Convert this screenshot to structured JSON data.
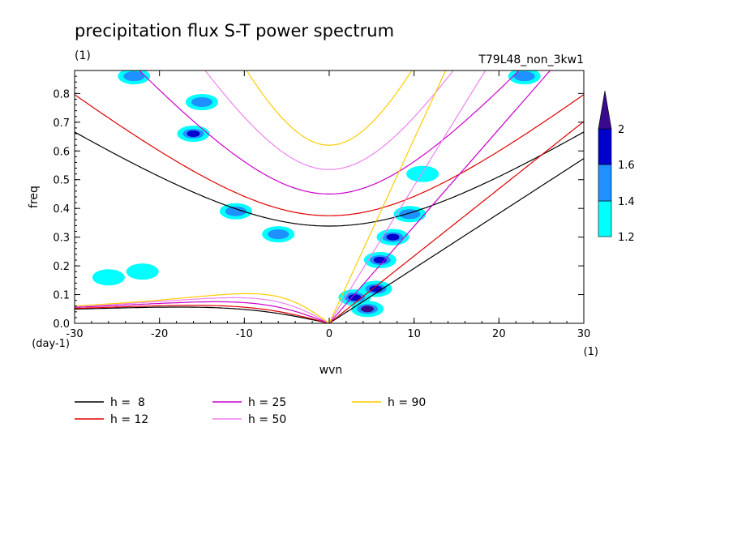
{
  "chart_data": {
    "type": "contour",
    "title": "precipitation flux S-T power spectrum",
    "title_units": "(1)",
    "run_label": "T79L48_non_3kw1",
    "xlabel": "wvn",
    "xlabel_units": "(1)",
    "ylabel": "freq",
    "ylabel_units": "(day-1)",
    "xlim": [
      -30,
      30
    ],
    "ylim": [
      0,
      0.88
    ],
    "xticks": [
      -30,
      -20,
      -10,
      0,
      10,
      20,
      30
    ],
    "xtick_labels": [
      "-30",
      "-20",
      "-10",
      "0",
      "10",
      "20",
      "30"
    ],
    "yticks": [
      0,
      0.1,
      0.2,
      0.3,
      0.4,
      0.5,
      0.6,
      0.7,
      0.8
    ],
    "ytick_labels": [
      "0.0",
      "0.1",
      "0.2",
      "0.3",
      "0.4",
      "0.5",
      "0.6",
      "0.7",
      "0.8"
    ],
    "colorbar": {
      "levels": [
        1.2,
        1.4,
        1.6,
        2
      ],
      "labels": [
        "1.2",
        "1.4",
        "1.6",
        "2"
      ],
      "colors": [
        "#00ffff",
        "#1e90ff",
        "#0000cd",
        "#3a0a8c"
      ]
    },
    "series": [
      {
        "name": "h = 8",
        "color": "#000000",
        "equivalent_depth": 8
      },
      {
        "name": "h = 12",
        "color": "#e00000",
        "equivalent_depth": 12
      },
      {
        "name": "h = 25",
        "color": "#cc00cc",
        "equivalent_depth": 25
      },
      {
        "name": "h = 50",
        "color": "#ee82ee",
        "equivalent_depth": 50
      },
      {
        "name": "h = 90",
        "color": "#ffcc00",
        "equivalent_depth": 90
      }
    ],
    "power_blobs": [
      {
        "x": 4.5,
        "y": 0.05,
        "level": 2
      },
      {
        "x": 5.5,
        "y": 0.12,
        "level": 1.6
      },
      {
        "x": 6.0,
        "y": 0.22,
        "level": 1.6
      },
      {
        "x": 7.5,
        "y": 0.3,
        "level": 1.6
      },
      {
        "x": 9.5,
        "y": 0.38,
        "level": 1.4
      },
      {
        "x": 3.0,
        "y": 0.09,
        "level": 1.6
      },
      {
        "x": -16,
        "y": 0.66,
        "level": 1.6
      },
      {
        "x": -15,
        "y": 0.77,
        "level": 1.4
      },
      {
        "x": -6,
        "y": 0.31,
        "level": 1.4
      },
      {
        "x": -11,
        "y": 0.39,
        "level": 1.4
      },
      {
        "x": -22,
        "y": 0.18,
        "level": 1.2
      },
      {
        "x": 23,
        "y": 0.86,
        "level": 1.4
      },
      {
        "x": -23,
        "y": 0.86,
        "level": 1.4
      },
      {
        "x": 11,
        "y": 0.52,
        "level": 1.2
      },
      {
        "x": -26,
        "y": 0.16,
        "level": 1.2
      }
    ]
  },
  "legend": [
    {
      "label": "h =  8",
      "color": "#000000"
    },
    {
      "label": "h = 12",
      "color": "#e00000"
    },
    {
      "label": "h = 25",
      "color": "#cc00cc"
    },
    {
      "label": "h = 50",
      "color": "#ee82ee"
    },
    {
      "label": "h = 90",
      "color": "#ffcc00"
    }
  ]
}
